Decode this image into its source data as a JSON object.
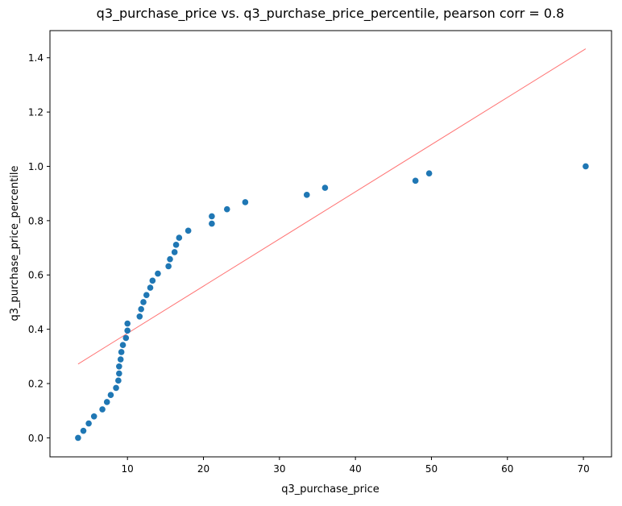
{
  "chart_data": {
    "type": "scatter",
    "title": "q3_purchase_price vs. q3_purchase_price_percentile, pearson corr = 0.8",
    "xlabel": "q3_purchase_price",
    "ylabel": "q3_purchase_price_percentile",
    "xlim": [
      -0.2,
      73.7
    ],
    "ylim": [
      -0.07,
      1.5
    ],
    "xticks": [
      10,
      20,
      30,
      40,
      50,
      60,
      70
    ],
    "xtick_labels": [
      "10",
      "20",
      "30",
      "40",
      "50",
      "60",
      "70"
    ],
    "yticks": [
      0.0,
      0.2,
      0.4,
      0.6,
      0.8,
      1.0,
      1.2,
      1.4
    ],
    "ytick_labels": [
      "0.0",
      "0.2",
      "0.4",
      "0.6",
      "0.8",
      "1.0",
      "1.2",
      "1.4"
    ],
    "grid": false,
    "point_color": "#1f77b4",
    "line_color": "#ff0000",
    "points": [
      {
        "x": 3.5,
        "y": 0.0
      },
      {
        "x": 4.2,
        "y": 0.026
      },
      {
        "x": 4.9,
        "y": 0.053
      },
      {
        "x": 5.6,
        "y": 0.079
      },
      {
        "x": 6.7,
        "y": 0.105
      },
      {
        "x": 7.3,
        "y": 0.132
      },
      {
        "x": 7.8,
        "y": 0.158
      },
      {
        "x": 8.5,
        "y": 0.184
      },
      {
        "x": 8.8,
        "y": 0.211
      },
      {
        "x": 8.9,
        "y": 0.237
      },
      {
        "x": 8.9,
        "y": 0.263
      },
      {
        "x": 9.1,
        "y": 0.289
      },
      {
        "x": 9.2,
        "y": 0.316
      },
      {
        "x": 9.4,
        "y": 0.342
      },
      {
        "x": 9.8,
        "y": 0.368
      },
      {
        "x": 10.0,
        "y": 0.395
      },
      {
        "x": 10.0,
        "y": 0.421
      },
      {
        "x": 11.6,
        "y": 0.447
      },
      {
        "x": 11.8,
        "y": 0.474
      },
      {
        "x": 12.1,
        "y": 0.5
      },
      {
        "x": 12.5,
        "y": 0.526
      },
      {
        "x": 13.0,
        "y": 0.553
      },
      {
        "x": 13.3,
        "y": 0.579
      },
      {
        "x": 14.0,
        "y": 0.605
      },
      {
        "x": 15.4,
        "y": 0.632
      },
      {
        "x": 15.6,
        "y": 0.658
      },
      {
        "x": 16.2,
        "y": 0.684
      },
      {
        "x": 16.4,
        "y": 0.711
      },
      {
        "x": 16.8,
        "y": 0.737
      },
      {
        "x": 18.0,
        "y": 0.763
      },
      {
        "x": 21.1,
        "y": 0.789
      },
      {
        "x": 21.1,
        "y": 0.816
      },
      {
        "x": 23.1,
        "y": 0.842
      },
      {
        "x": 25.5,
        "y": 0.868
      },
      {
        "x": 33.6,
        "y": 0.895
      },
      {
        "x": 36.0,
        "y": 0.921
      },
      {
        "x": 47.9,
        "y": 0.947
      },
      {
        "x": 49.7,
        "y": 0.974
      },
      {
        "x": 70.3,
        "y": 1.0
      }
    ],
    "fit_line": {
      "x": [
        3.5,
        70.3
      ],
      "y": [
        0.272,
        1.433
      ]
    }
  }
}
